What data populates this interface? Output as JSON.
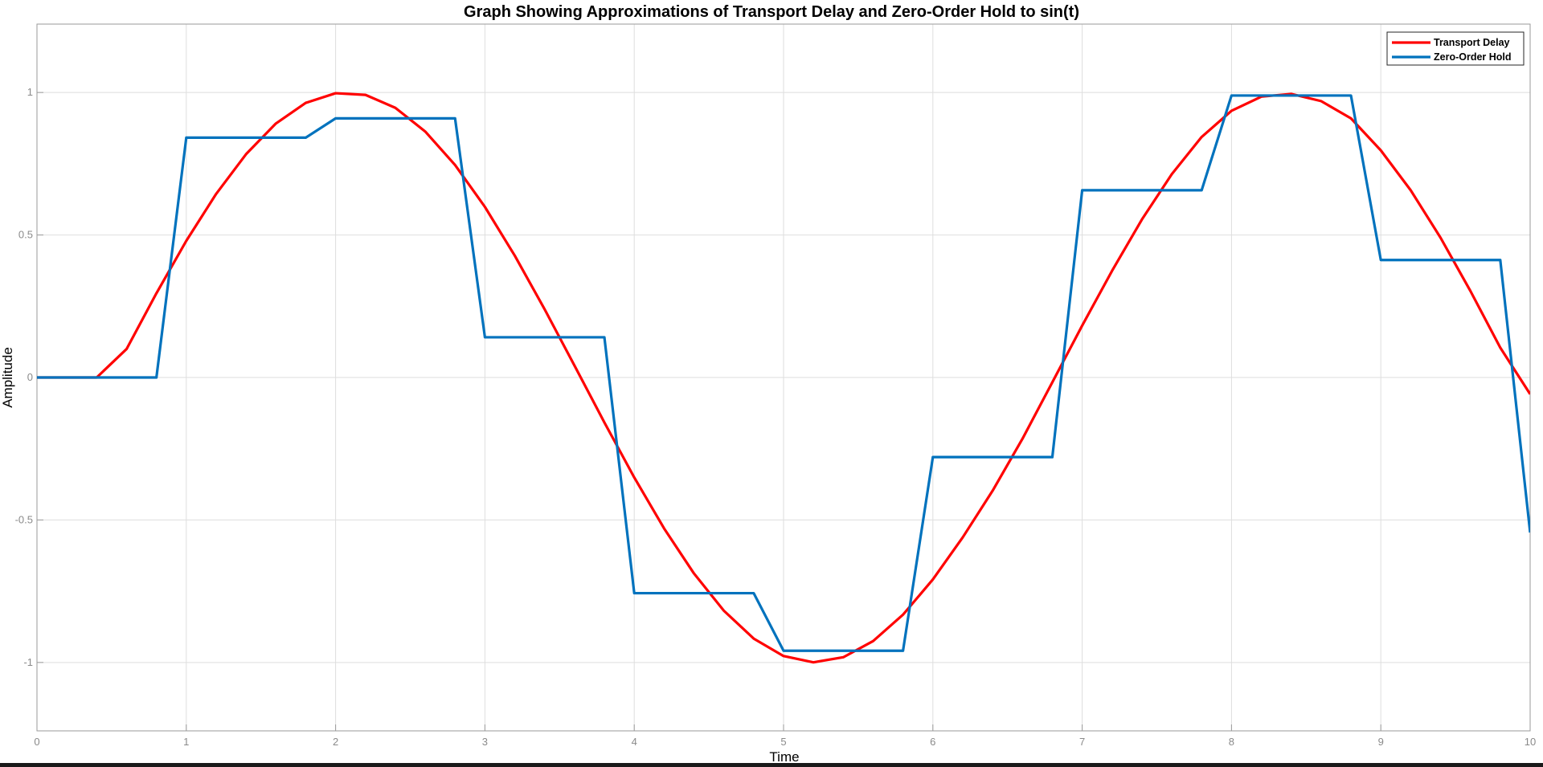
{
  "chart_data": {
    "type": "line",
    "title": "Graph Showing Approximations of Transport Delay and Zero-Order Hold to sin(t)",
    "xlabel": "Time",
    "ylabel": "Amplitude",
    "xlim": [
      0,
      10
    ],
    "ylim": [
      -1.24,
      1.24
    ],
    "xticks": [
      0,
      1,
      2,
      3,
      4,
      5,
      6,
      7,
      8,
      9,
      10
    ],
    "xtick_labels": [
      "0",
      "1",
      "2",
      "3",
      "4",
      "5",
      "6",
      "7",
      "8",
      "9",
      "10"
    ],
    "yticks": [
      -1,
      -0.5,
      0,
      0.5,
      1
    ],
    "ytick_labels": [
      "-1",
      "-0.5",
      "0",
      "0.5",
      "1"
    ],
    "grid": true,
    "legend_position": "top-right",
    "series": [
      {
        "name": "Transport Delay",
        "color": "#ff0000",
        "x": [
          0,
          0.2,
          0.4,
          0.6,
          0.8,
          1.0,
          1.2,
          1.4,
          1.6,
          1.8,
          2.0,
          2.2,
          2.4,
          2.6,
          2.8,
          3.0,
          3.2,
          3.4,
          3.6,
          3.8,
          4.0,
          4.2,
          4.4,
          4.6,
          4.8,
          5.0,
          5.2,
          5.4,
          5.6,
          5.8,
          6.0,
          6.2,
          6.4,
          6.6,
          6.8,
          7.0,
          7.2,
          7.4,
          7.6,
          7.8,
          8.0,
          8.2,
          8.4,
          8.6,
          8.8,
          9.0,
          9.2,
          9.4,
          9.6,
          9.8,
          10.0
        ],
        "y": [
          0,
          0,
          0,
          0.0998,
          0.2955,
          0.4794,
          0.6442,
          0.7833,
          0.8912,
          0.9636,
          0.9975,
          0.9917,
          0.9463,
          0.8632,
          0.7457,
          0.5985,
          0.4274,
          0.2392,
          0.0416,
          -0.1577,
          -0.3508,
          -0.5298,
          -0.6878,
          -0.8183,
          -0.9162,
          -0.9775,
          -0.9996,
          -0.9817,
          -0.9249,
          -0.8323,
          -0.7087,
          -0.561,
          -0.3975,
          -0.2151,
          -0.0168,
          0.1822,
          0.3742,
          0.5544,
          0.7135,
          0.8439,
          0.9358,
          0.9854,
          0.995,
          0.9698,
          0.9093,
          0.7968,
          0.657,
          0.4903,
          0.3035,
          0.1047,
          -0.0584
        ]
      },
      {
        "name": "Zero-Order Hold",
        "color": "#0072bd",
        "x": [
          0,
          0.8,
          1.0,
          1.8,
          2.0,
          2.8,
          3.0,
          3.8,
          4.0,
          4.8,
          5.0,
          5.8,
          6.0,
          6.8,
          7.0,
          7.8,
          8.0,
          8.8,
          9.0,
          9.8,
          10.0
        ],
        "y": [
          0,
          0,
          0.8415,
          0.8415,
          0.9093,
          0.9093,
          0.1411,
          0.1411,
          -0.7568,
          -0.7568,
          -0.9589,
          -0.9589,
          -0.2794,
          -0.2794,
          0.657,
          0.657,
          0.9894,
          0.9894,
          0.4121,
          0.4121,
          -0.544
        ]
      }
    ]
  }
}
